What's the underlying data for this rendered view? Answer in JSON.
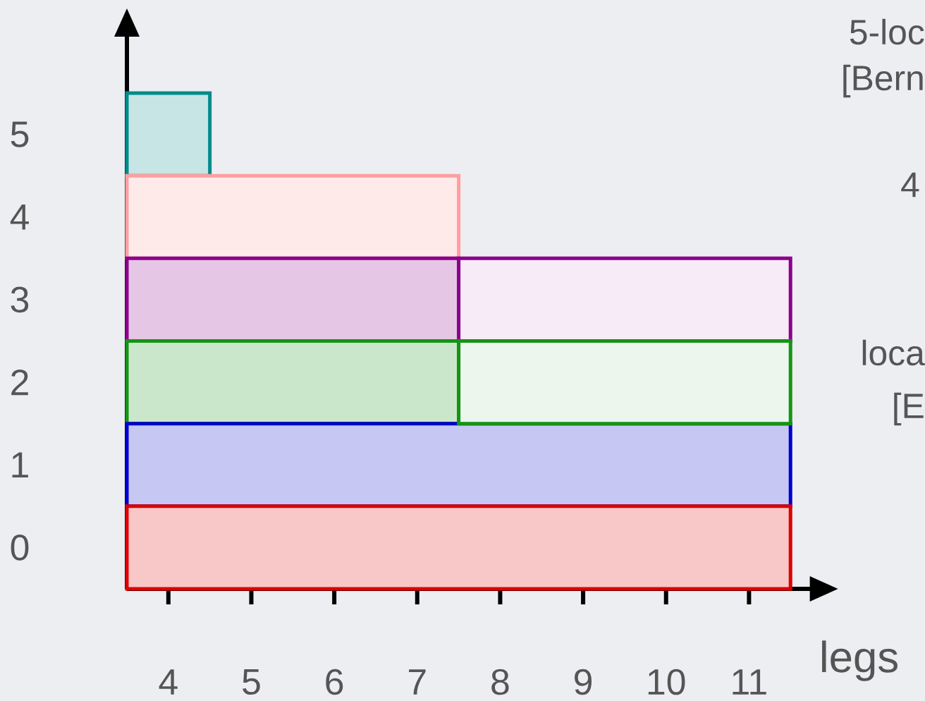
{
  "chart_data": {
    "type": "bar",
    "orientation": "horizontal",
    "categories": [
      "5",
      "4",
      "3",
      "2",
      "1",
      "0"
    ],
    "xlabel": "legs",
    "xlim": [
      3.5,
      11.75
    ],
    "xticks": [
      4,
      5,
      6,
      7,
      8,
      9,
      10,
      11
    ],
    "series": [
      {
        "base": [
          3.5,
          3.5,
          3.5,
          3.5,
          3.5,
          3.5
        ],
        "values": [
          1,
          4,
          4,
          4,
          8,
          8
        ],
        "colors": [
          "#008b8b",
          "#ff9f9f",
          "#8b008b",
          "#149414",
          "#0000cc",
          "#dd0000"
        ]
      },
      {
        "base": [
          null,
          null,
          7.5,
          7.5,
          null,
          null
        ],
        "values": [
          null,
          null,
          4,
          4,
          null,
          null
        ],
        "colors": [
          null,
          null,
          "#8b008b",
          "#149414",
          null,
          null
        ]
      }
    ],
    "annotations": [
      "5-loc",
      "[Bern",
      "4",
      "loca",
      "[E"
    ]
  }
}
